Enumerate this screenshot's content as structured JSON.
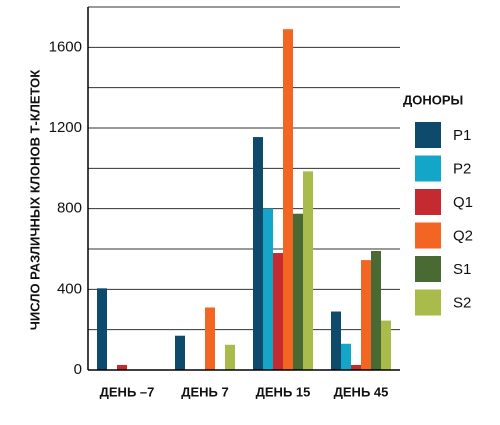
{
  "chart_data": {
    "type": "bar",
    "y_label": "ЧИСЛО РАЗЛИЧНЫХ КЛОНОВ Т-КЛЕТОК",
    "categories": [
      "ДЕНЬ –7",
      "ДЕНЬ 7",
      "ДЕНЬ 15",
      "ДЕНЬ 45"
    ],
    "legend_title": "ДОНОРЫ",
    "series": [
      {
        "name": "P1",
        "color": "#0d4a6b",
        "values": [
          405,
          170,
          1155,
          290
        ]
      },
      {
        "name": "P2",
        "color": "#13a6c9",
        "values": [
          0,
          0,
          800,
          130
        ]
      },
      {
        "name": "Q1",
        "color": "#c42a2f",
        "values": [
          25,
          0,
          580,
          25
        ]
      },
      {
        "name": "Q2",
        "color": "#f26522",
        "values": [
          0,
          310,
          1690,
          545
        ]
      },
      {
        "name": "S1",
        "color": "#4a6a33",
        "values": [
          0,
          0,
          775,
          590
        ]
      },
      {
        "name": "S2",
        "color": "#a9bb4a",
        "values": [
          0,
          125,
          985,
          245
        ]
      }
    ],
    "ylim": [
      0,
      1800
    ],
    "yticks": [
      0,
      400,
      800,
      1200,
      1600
    ],
    "minor_grid": [
      200,
      600,
      1000,
      1400,
      1800
    ],
    "grid": true,
    "legend": "right"
  }
}
